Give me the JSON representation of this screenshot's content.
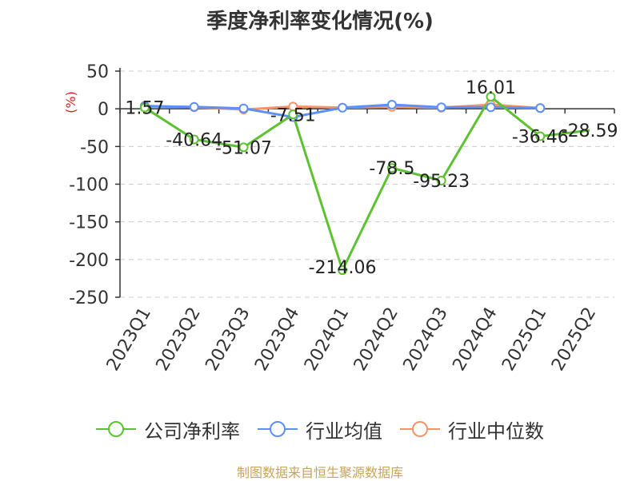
{
  "chart_data": {
    "type": "line",
    "title": "季度净利率变化情况(%)",
    "ylabel": "(%)",
    "categories": [
      "2023Q1",
      "2023Q2",
      "2023Q3",
      "2023Q4",
      "2024Q1",
      "2024Q2",
      "2024Q3",
      "2024Q4",
      "2025Q1",
      "2025Q2"
    ],
    "ylim": [
      -250,
      50
    ],
    "yticks": [
      50,
      0,
      -50,
      -100,
      -150,
      -200,
      -250
    ],
    "grid": true,
    "legend_position": "bottom",
    "series": [
      {
        "name": "公司净利率",
        "color": "#5cc22f",
        "values": [
          1.57,
          -40.64,
          -51.07,
          -7.51,
          -214.06,
          -78.5,
          -95.23,
          16.01,
          -36.46,
          -28.59
        ],
        "labels": [
          "1.57",
          "-40.64",
          "-51.07",
          "-7.51",
          "-214.06",
          "-78.5",
          "-95.23",
          "16.01",
          "-36.46",
          "-28.59"
        ]
      },
      {
        "name": "行业均值",
        "color": "#5b8ff9",
        "values": [
          3.2,
          2.5,
          0.5,
          -11,
          1.5,
          5.5,
          2,
          2,
          1,
          null
        ]
      },
      {
        "name": "行业中位数",
        "color": "#f39469",
        "values": [
          4,
          2,
          -1,
          3,
          1.5,
          2.5,
          1.5,
          5.5,
          1,
          null
        ]
      }
    ]
  },
  "source": "制图数据来自恒生聚源数据库"
}
